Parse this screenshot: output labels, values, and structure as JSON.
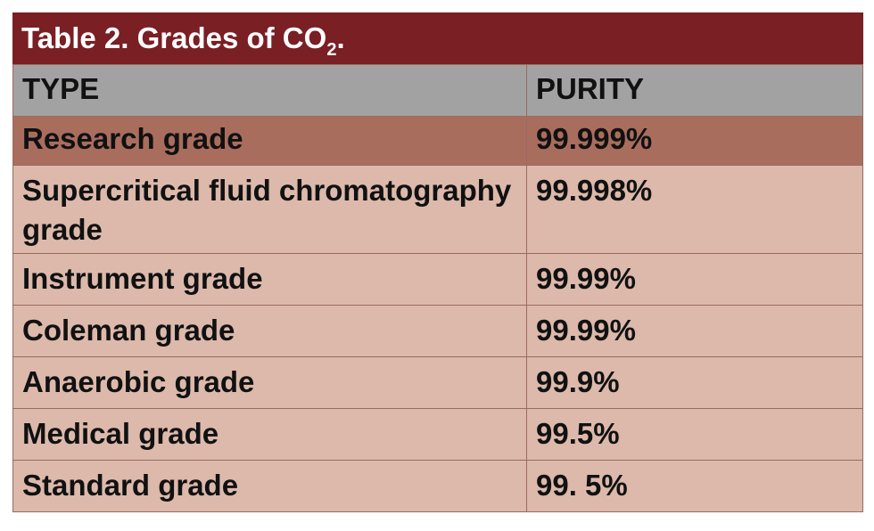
{
  "table": {
    "title": {
      "text": "Table 2. Grades of CO",
      "subscript": "2",
      "end": "."
    },
    "header": [
      "TYPE",
      "PURITY"
    ],
    "rows": [
      [
        "Research grade",
        "99.999%"
      ],
      [
        "Supercritical fluid chromatography grade",
        "99.998%"
      ],
      [
        "Instrument grade",
        "99.99%"
      ],
      [
        "Coleman grade",
        "99.99%"
      ],
      [
        "Anaerobic grade",
        "99.9%"
      ],
      [
        "Medical grade",
        "99.5%"
      ],
      [
        "Standard grade",
        "99. 5%"
      ]
    ]
  }
}
